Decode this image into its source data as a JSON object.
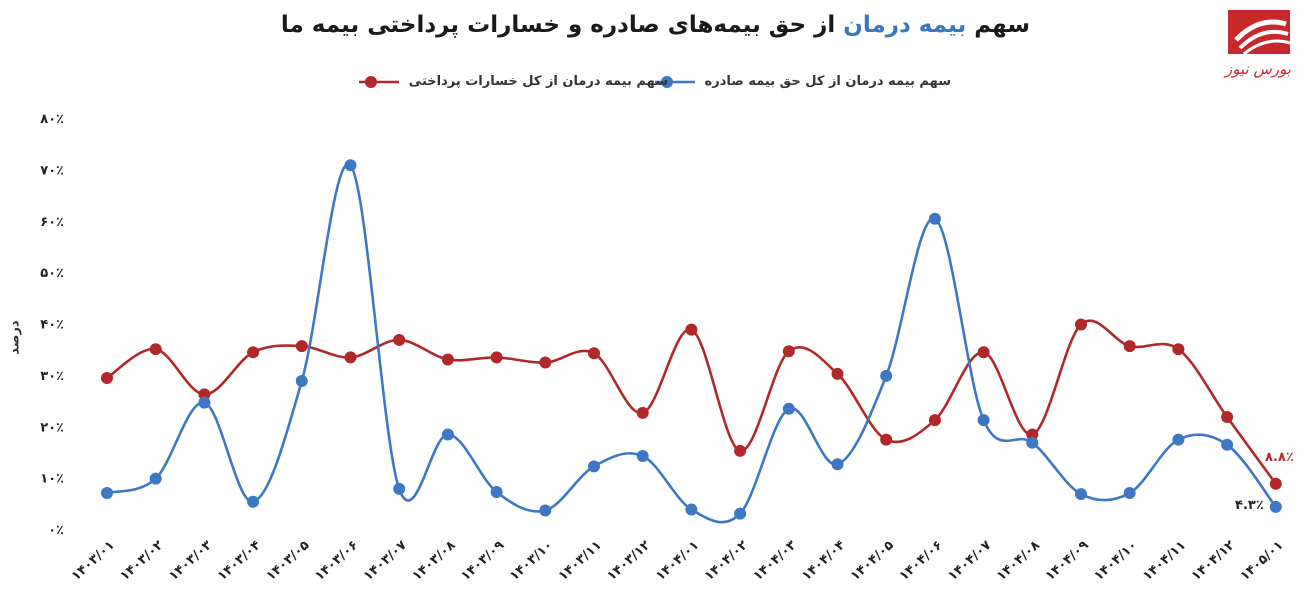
{
  "title": {
    "prefix": "سهم ",
    "highlight": "بیمه درمان",
    "suffix": " از حق بیمه‌های صادره و خسارات پرداختی بیمه ما"
  },
  "logo": {
    "text": "بورس نیوز",
    "icon": "bourse-news-logo"
  },
  "colors": {
    "blue": "#3e78c2",
    "red": "#b1282b"
  },
  "chart_data": {
    "type": "line",
    "title": "سهم بیمه درمان از حق بیمه‌های صادره و خسارات پرداختی بیمه ما",
    "ylabel": "درصد",
    "xlabel": "",
    "ylim": [
      0,
      80
    ],
    "yticks": [
      0,
      10,
      20,
      30,
      40,
      50,
      60,
      70,
      80
    ],
    "ytick_labels": [
      "۰٪",
      "۱۰٪",
      "۲۰٪",
      "۳۰٪",
      "۴۰٪",
      "۵۰٪",
      "۶۰٪",
      "۷۰٪",
      "۸۰٪"
    ],
    "categories": [
      "۱۴۰۳/۰۱",
      "۱۴۰۳/۰۲",
      "۱۴۰۳/۰۳",
      "۱۴۰۳/۰۴",
      "۱۴۰۳/۰۵",
      "۱۴۰۳/۰۶",
      "۱۴۰۳/۰۷",
      "۱۴۰۳/۰۸",
      "۱۴۰۳/۰۹",
      "۱۴۰۳/۱۰",
      "۱۴۰۳/۱۱",
      "۱۴۰۳/۱۲",
      "۱۴۰۴/۰۱",
      "۱۴۰۴/۰۲",
      "۱۴۰۴/۰۳",
      "۱۴۰۴/۰۴",
      "۱۴۰۴/۰۵",
      "۱۴۰۴/۰۶",
      "۱۴۰۴/۰۷",
      "۱۴۰۴/۰۸",
      "۱۴۰۴/۰۹",
      "۱۴۰۴/۱۰",
      "۱۴۰۴/۱۱",
      "۱۴۰۴/۱۲",
      "۱۴۰۵/۰۱"
    ],
    "grid": false,
    "legend_position": "top",
    "series": [
      {
        "name": "سهم بیمه درمان از کل حق بیمه صادره",
        "color": "#3e78c2",
        "values": [
          7.0,
          9.8,
          24.6,
          5.3,
          28.8,
          70.8,
          7.8,
          18.4,
          7.2,
          3.6,
          12.2,
          14.2,
          3.8,
          3.0,
          23.4,
          12.6,
          29.8,
          60.4,
          21.2,
          16.8,
          6.8,
          7.0,
          17.4,
          16.4,
          4.3
        ],
        "data_label": "۴.۳٪"
      },
      {
        "name": "سهم بیمه درمان از کل خسارات پرداختی",
        "color": "#b1282b",
        "values": [
          29.4,
          35.0,
          26.2,
          34.4,
          35.6,
          33.4,
          36.8,
          33.0,
          33.4,
          32.4,
          34.2,
          22.6,
          38.8,
          15.2,
          34.6,
          30.2,
          17.4,
          21.2,
          34.4,
          18.4,
          39.8,
          35.6,
          35.0,
          21.8,
          8.8
        ],
        "data_label": "۸.۸٪"
      }
    ]
  }
}
